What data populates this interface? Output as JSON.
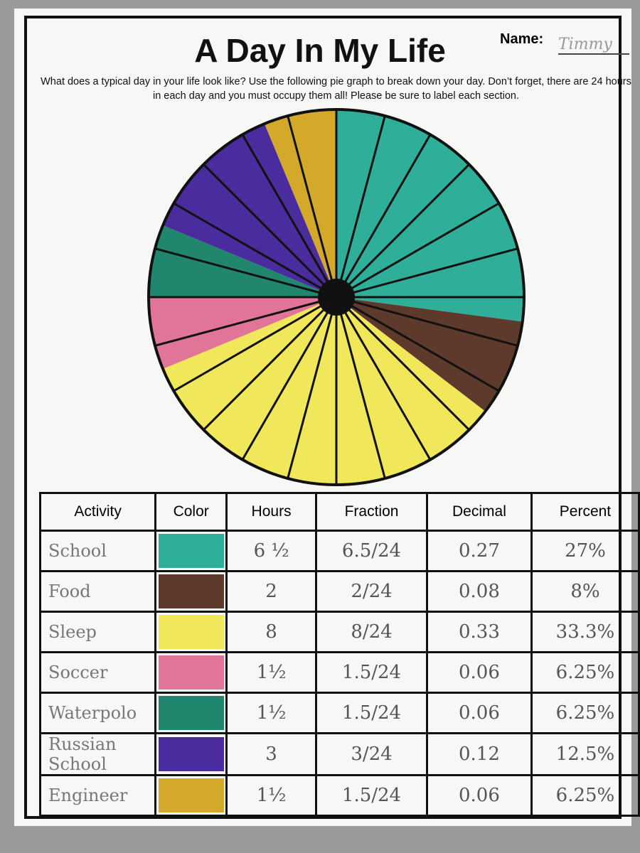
{
  "header": {
    "title": "A Day In My Life",
    "name_label": "Name:",
    "name": "Timmy",
    "instructions": "What does a typical day in your life look like? Use the following pie graph to break down your day. Don’t forget, there are 24 hours in each day and you must occupy them all! Please be sure to label each section."
  },
  "chart_data": {
    "type": "pie",
    "values": [
      6.5,
      2,
      8,
      1.5,
      1.5,
      3,
      1.5
    ],
    "colors": [
      "#2fae9a",
      "#5e3a2c",
      "#f1e75a",
      "#e07597",
      "#20866e",
      "#4b2c9e",
      "#d4a92a"
    ],
    "divisions": 24
  },
  "table": {
    "columns": [
      "Activity",
      "Color",
      "Hours",
      "Fraction",
      "Decimal",
      "Percent"
    ],
    "rows": [
      {
        "activity": "School",
        "color": "#2fae9a",
        "hours": "6 ½",
        "fraction": "6.5/24",
        "decimal": "0.27",
        "percent": "27%"
      },
      {
        "activity": "Food",
        "color": "#5e3a2c",
        "hours": "2",
        "fraction": "2/24",
        "decimal": "0.08",
        "percent": "8%"
      },
      {
        "activity": "Sleep",
        "color": "#f1e75a",
        "hours": "8",
        "fraction": "8/24",
        "decimal": "0.33",
        "percent": "33.3%"
      },
      {
        "activity": "Soccer",
        "color": "#e07597",
        "hours": "1½",
        "fraction": "1.5/24",
        "decimal": "0.06",
        "percent": "6.25%"
      },
      {
        "activity": "Waterpolo",
        "color": "#20866e",
        "hours": "1½",
        "fraction": "1.5/24",
        "decimal": "0.06",
        "percent": "6.25%"
      },
      {
        "activity": "Russian School",
        "color": "#4b2c9e",
        "hours": "3",
        "fraction": "3/24",
        "decimal": "0.12",
        "percent": "12.5%"
      },
      {
        "activity": "Engineer",
        "color": "#d4a92a",
        "hours": "1½",
        "fraction": "1.5/24",
        "decimal": "0.06",
        "percent": "6.25%"
      }
    ]
  }
}
